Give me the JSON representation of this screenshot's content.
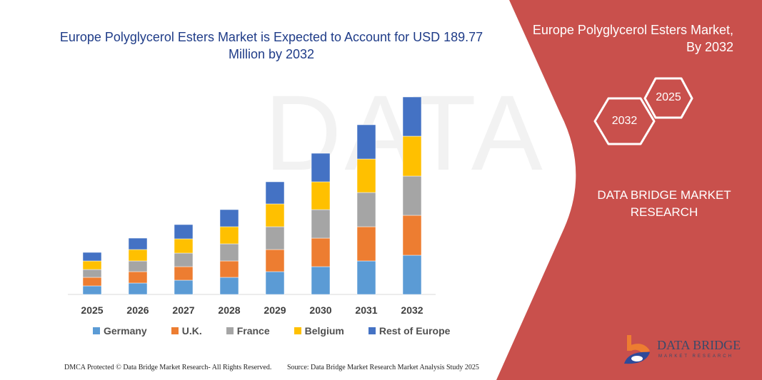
{
  "chart_data": {
    "type": "bar",
    "stacked": true,
    "title": "Europe Polyglycerol Esters Market is Expected to Account for USD 189.77 Million by 2032",
    "categories": [
      "2025",
      "2026",
      "2027",
      "2028",
      "2029",
      "2030",
      "2031",
      "2032"
    ],
    "series": [
      {
        "name": "Germany",
        "color": "#5b9bd5",
        "values": [
          12,
          16,
          20,
          24,
          32,
          39,
          47,
          55
        ]
      },
      {
        "name": "U.K.",
        "color": "#ed7d31",
        "values": [
          12,
          16,
          19,
          23,
          31,
          40,
          48,
          56
        ]
      },
      {
        "name": "France",
        "color": "#a5a5a5",
        "values": [
          11,
          15,
          19,
          24,
          32,
          40,
          48,
          55
        ]
      },
      {
        "name": "Belgium",
        "color": "#ffc000",
        "values": [
          12,
          16,
          20,
          24,
          32,
          39,
          47,
          56
        ]
      },
      {
        "name": "Rest of Europe",
        "color": "#4472c4",
        "values": [
          12,
          16,
          20,
          24,
          31,
          40,
          48,
          55
        ]
      }
    ],
    "xlabel": "",
    "ylabel": "",
    "legend_position": "bottom",
    "grid": false
  },
  "side_panel": {
    "title_line1": "Europe Polyglycerol Esters Market,",
    "title_line2": "By 2032",
    "hex_a": "2025",
    "hex_b": "2032",
    "brand_line1": "DATA BRIDGE MARKET",
    "brand_line2": "RESEARCH",
    "color": "#c9504c"
  },
  "logo": {
    "text": "DATA BRIDGE",
    "sub": "MARKET RESEARCH"
  },
  "footer": {
    "left": "DMCA Protected © Data Bridge Market Research- All Rights Reserved.",
    "right": "Source: Data Bridge Market Research Market Analysis Study 2025"
  }
}
